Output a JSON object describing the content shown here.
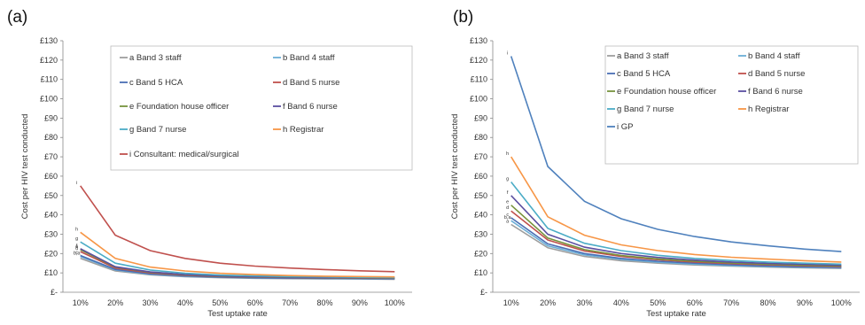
{
  "chart_data": [
    {
      "type": "line",
      "panel_label": "(a)",
      "xlabel": "Test uptake rate",
      "ylabel": "Cost per HIV test conducted",
      "categories": [
        "10%",
        "20%",
        "30%",
        "40%",
        "50%",
        "60%",
        "70%",
        "80%",
        "90%",
        "100%"
      ],
      "y_ticks": [
        "£-",
        "£10",
        "£20",
        "£30",
        "£40",
        "£50",
        "£60",
        "£70",
        "£80",
        "£90",
        "£100",
        "£110",
        "£120",
        "£130"
      ],
      "ylim": [
        0,
        130
      ],
      "grid": false,
      "legend": "inside top, two columns",
      "series": [
        {
          "name": "a Band 3 staff",
          "color": "#9e9e9e",
          "values": [
            17.5,
            11.0,
            9.0,
            8.0,
            7.5,
            7.2,
            7.0,
            6.9,
            6.8,
            6.7
          ]
        },
        {
          "name": "b Band 4 staff",
          "color": "#6baed6",
          "values": [
            18.5,
            11.5,
            9.3,
            8.2,
            7.7,
            7.4,
            7.2,
            7.1,
            7.0,
            6.9
          ]
        },
        {
          "name": "c Band 5 HCA",
          "color": "#4a6fb5",
          "values": [
            19.0,
            11.8,
            9.5,
            8.4,
            7.8,
            7.5,
            7.3,
            7.2,
            7.1,
            7.0
          ]
        },
        {
          "name": "d Band 5 nurse",
          "color": "#c0504d",
          "values": [
            21.0,
            12.5,
            10.0,
            8.8,
            8.1,
            7.8,
            7.6,
            7.4,
            7.3,
            7.2
          ]
        },
        {
          "name": "e Foundation house officer",
          "color": "#77933c",
          "values": [
            22.0,
            13.0,
            10.3,
            9.0,
            8.3,
            7.9,
            7.7,
            7.5,
            7.4,
            7.3
          ]
        },
        {
          "name": "f Band 6 nurse",
          "color": "#5b4fa0",
          "values": [
            22.5,
            13.2,
            10.5,
            9.2,
            8.4,
            8.0,
            7.8,
            7.6,
            7.5,
            7.4
          ]
        },
        {
          "name": "g Band 7 nurse",
          "color": "#4bacc6",
          "values": [
            26.0,
            15.0,
            11.5,
            9.8,
            8.9,
            8.4,
            8.1,
            7.9,
            7.7,
            7.6
          ]
        },
        {
          "name": "h Registrar",
          "color": "#f79646",
          "values": [
            31.0,
            17.5,
            13.0,
            11.0,
            9.8,
            9.1,
            8.6,
            8.3,
            8.1,
            7.9
          ]
        },
        {
          "name": "i Consultant: medical/surgical",
          "color": "#c0504d",
          "values": [
            55.0,
            29.5,
            21.5,
            17.5,
            15.0,
            13.5,
            12.5,
            11.7,
            11.1,
            10.6
          ]
        }
      ],
      "end_labels": [
        "i",
        "h",
        "g",
        "f",
        "e",
        "d",
        "c",
        "b,a"
      ]
    },
    {
      "type": "line",
      "panel_label": "(b)",
      "xlabel": "Test uptake rate",
      "ylabel": "Cost per HIV test conducted",
      "categories": [
        "10%",
        "20%",
        "30%",
        "40%",
        "50%",
        "60%",
        "70%",
        "80%",
        "90%",
        "100%"
      ],
      "y_ticks": [
        "£-",
        "£10",
        "£20",
        "£30",
        "£40",
        "£50",
        "£60",
        "£70",
        "£80",
        "£90",
        "£100",
        "£110",
        "£120",
        "£130"
      ],
      "ylim": [
        0,
        130
      ],
      "grid": false,
      "legend": "inside top, two columns",
      "series": [
        {
          "name": "a Band 3 staff",
          "color": "#9e9e9e",
          "values": [
            35.0,
            23.0,
            18.5,
            16.3,
            15.0,
            14.1,
            13.5,
            13.0,
            12.6,
            12.3
          ]
        },
        {
          "name": "b Band 4 staff",
          "color": "#6baed6",
          "values": [
            37.0,
            24.0,
            19.3,
            17.0,
            15.5,
            14.5,
            13.8,
            13.3,
            12.9,
            12.6
          ]
        },
        {
          "name": "c Band 5 HCA",
          "color": "#4a6fb5",
          "values": [
            38.5,
            25.0,
            20.0,
            17.5,
            16.0,
            15.0,
            14.2,
            13.6,
            13.2,
            12.9
          ]
        },
        {
          "name": "d Band 5 nurse",
          "color": "#c0504d",
          "values": [
            42.0,
            27.0,
            21.3,
            18.5,
            16.8,
            15.6,
            14.8,
            14.2,
            13.7,
            13.3
          ]
        },
        {
          "name": "e Foundation house officer",
          "color": "#77933c",
          "values": [
            45.0,
            28.0,
            22.0,
            19.0,
            17.2,
            16.0,
            15.1,
            14.5,
            14.0,
            13.6
          ]
        },
        {
          "name": "f Band 6 nurse",
          "color": "#5b4fa0",
          "values": [
            50.0,
            30.0,
            23.3,
            20.0,
            18.0,
            16.6,
            15.6,
            14.9,
            14.4,
            13.9
          ]
        },
        {
          "name": "g Band 7 nurse",
          "color": "#4bacc6",
          "values": [
            57.0,
            33.0,
            25.3,
            21.5,
            19.1,
            17.5,
            16.4,
            15.6,
            15.0,
            14.5
          ]
        },
        {
          "name": "h Registrar",
          "color": "#f79646",
          "values": [
            70.0,
            39.0,
            29.5,
            24.5,
            21.5,
            19.5,
            18.1,
            17.1,
            16.3,
            15.6
          ]
        },
        {
          "name": "i GP",
          "color": "#4f81bd",
          "values": [
            122.0,
            65.0,
            47.0,
            38.0,
            32.5,
            28.8,
            26.0,
            24.0,
            22.3,
            21.0
          ]
        }
      ],
      "end_labels": [
        "i",
        "h",
        "g",
        "f",
        "e",
        "d",
        "c",
        "b,a",
        "a"
      ]
    }
  ]
}
